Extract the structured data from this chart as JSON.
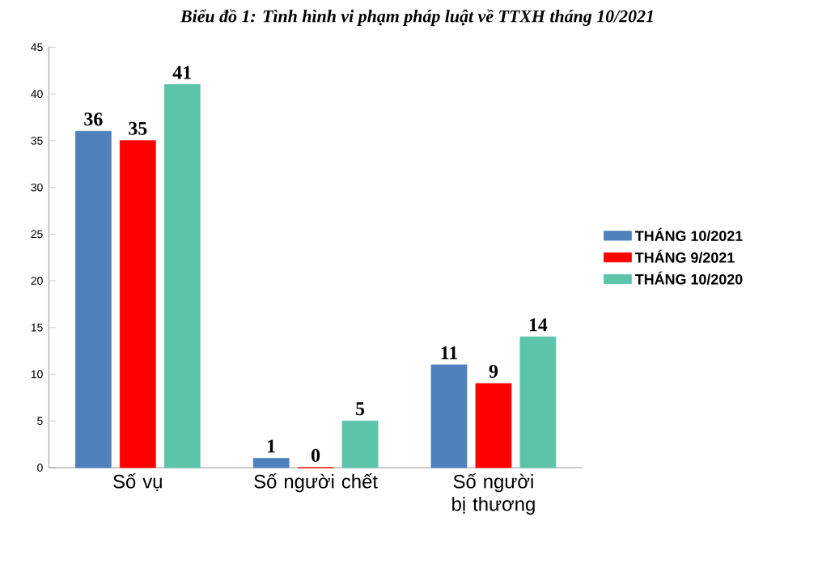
{
  "chart_data": {
    "type": "bar",
    "title": "Biểu đồ 1: Tình hình vi phạm pháp luật về TTXH tháng 10/2021",
    "categories": [
      "Số vụ",
      "Số người chết",
      "Số người bị thương"
    ],
    "series": [
      {
        "name": "THÁNG 10/2021",
        "color": "#4f81bd",
        "values": [
          36,
          1,
          11
        ]
      },
      {
        "name": "THÁNG 9/2021",
        "color": "#ff0000",
        "values": [
          35,
          0,
          9
        ]
      },
      {
        "name": "THÁNG 10/2020",
        "color": "#5cc4a8",
        "values": [
          41,
          5,
          14
        ]
      }
    ],
    "ylim": [
      0,
      45
    ],
    "yticks": [
      0,
      5,
      10,
      15,
      20,
      25,
      30,
      35,
      40,
      45
    ],
    "data_labels": true,
    "legend": "right",
    "grid": false
  }
}
